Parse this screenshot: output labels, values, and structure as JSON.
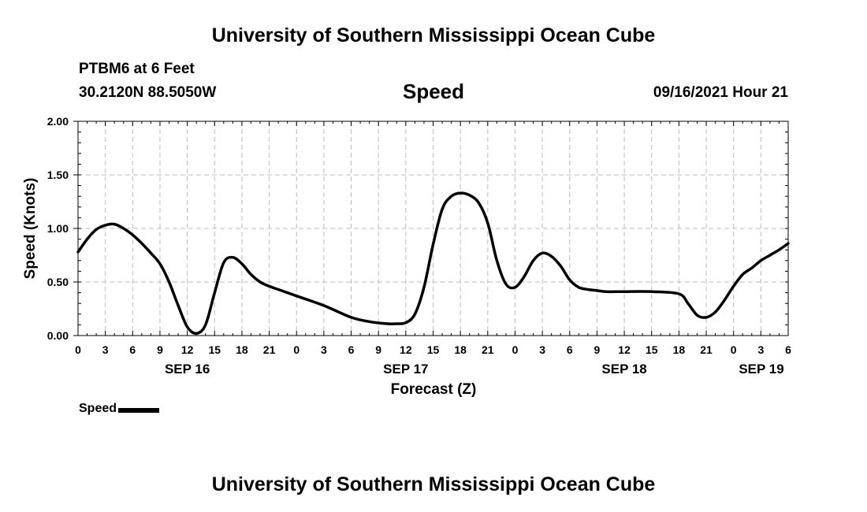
{
  "page": {
    "top_title": "University of Southern Mississippi Ocean Cube",
    "bottom_title": "University of Southern Mississippi Ocean Cube",
    "station": "PTBM6 at 6 Feet",
    "coordinates": "30.2120N  88.5050W",
    "datetime": "09/16/2021 Hour 21"
  },
  "colors": {
    "line": "#000000",
    "grid": "#bbbbbb",
    "background": "#ffffff"
  },
  "chart_data": {
    "type": "line",
    "title": "Speed",
    "xlabel": "Forecast (Z)",
    "ylabel": "Speed (Knots)",
    "grid": true,
    "legend_position": "bottom-left",
    "ylim": [
      0,
      2
    ],
    "yticks": [
      0,
      0.5,
      1,
      1.5,
      2
    ],
    "ytick_labels": [
      "0.00",
      "0.50",
      "1.00",
      "1.50",
      "2.00"
    ],
    "xlim": [
      0,
      78
    ],
    "xticks": [
      0,
      3,
      6,
      9,
      12,
      15,
      18,
      21,
      24,
      27,
      30,
      33,
      36,
      39,
      42,
      45,
      48,
      51,
      54,
      57,
      60,
      63,
      66,
      69,
      72,
      75,
      78
    ],
    "xtick_labels": [
      "0",
      "3",
      "6",
      "9",
      "12",
      "15",
      "18",
      "21",
      "0",
      "3",
      "6",
      "9",
      "12",
      "15",
      "18",
      "21",
      "0",
      "3",
      "6",
      "9",
      "12",
      "15",
      "18",
      "21",
      "0",
      "3",
      "6"
    ],
    "date_labels": [
      {
        "x": 12,
        "label": "SEP 16"
      },
      {
        "x": 36,
        "label": "SEP 17"
      },
      {
        "x": 60,
        "label": "SEP 18"
      },
      {
        "x": 78,
        "label": "SEP 19"
      }
    ],
    "x_units": "hours since SEP 16 00Z",
    "series": [
      {
        "name": "Speed",
        "x": [
          0,
          1,
          2,
          3,
          4,
          5,
          6,
          7,
          8,
          9,
          10,
          11,
          12,
          13,
          14,
          15,
          16,
          17,
          18,
          19,
          20,
          21,
          22,
          24,
          27,
          30,
          32,
          34,
          35,
          36,
          37,
          38,
          39,
          40,
          41,
          42,
          43,
          44,
          45,
          46,
          47,
          48,
          49,
          50,
          51,
          52,
          53,
          54,
          55,
          56,
          57,
          58,
          60,
          63,
          66,
          67,
          68,
          69,
          70,
          71,
          72,
          73,
          74,
          75,
          76,
          77,
          78
        ],
        "values": [
          0.78,
          0.9,
          0.99,
          1.03,
          1.04,
          1.0,
          0.94,
          0.86,
          0.77,
          0.67,
          0.5,
          0.28,
          0.08,
          0.02,
          0.1,
          0.4,
          0.68,
          0.73,
          0.67,
          0.57,
          0.5,
          0.46,
          0.43,
          0.37,
          0.28,
          0.17,
          0.13,
          0.11,
          0.11,
          0.12,
          0.2,
          0.45,
          0.85,
          1.18,
          1.3,
          1.33,
          1.31,
          1.24,
          1.05,
          0.7,
          0.48,
          0.45,
          0.55,
          0.7,
          0.77,
          0.74,
          0.65,
          0.52,
          0.45,
          0.43,
          0.42,
          0.41,
          0.41,
          0.41,
          0.39,
          0.3,
          0.19,
          0.17,
          0.22,
          0.33,
          0.46,
          0.57,
          0.63,
          0.7,
          0.75,
          0.8,
          0.86
        ]
      }
    ],
    "legend": [
      "Speed"
    ]
  }
}
